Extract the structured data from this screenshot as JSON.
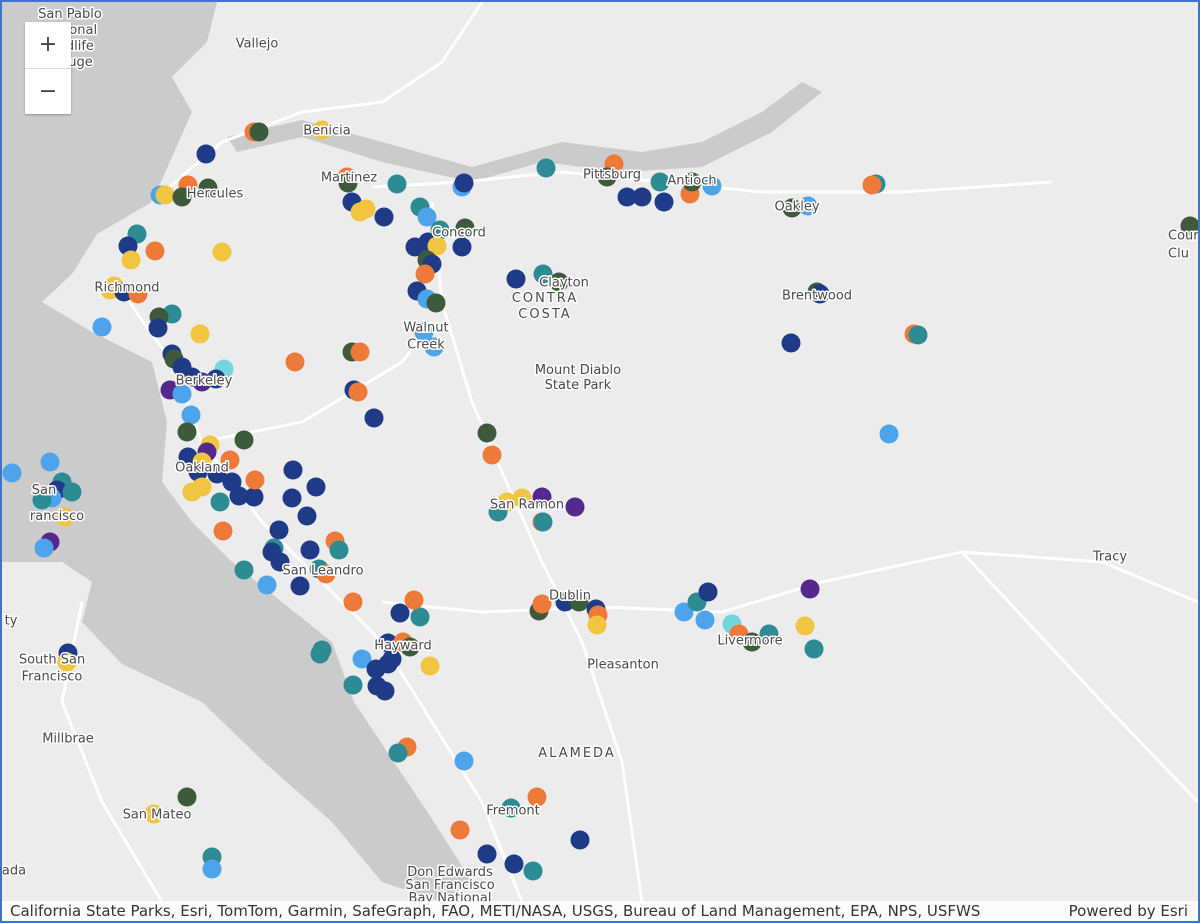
{
  "zoom": {
    "in": "+",
    "out": "−"
  },
  "labels": [
    [
      "San Pablo",
      "National",
      "Wildlife",
      "Refuge"
    ],
    [
      "Vallejo"
    ],
    [
      "Benicia"
    ],
    [
      "Martinez"
    ],
    [
      "Hercules"
    ],
    [
      "Pittsburg"
    ],
    [
      "Antioch"
    ],
    [
      "Oakley"
    ],
    [
      "Concord"
    ],
    [
      "Clayton"
    ],
    [
      "CONTRA",
      "COSTA"
    ],
    [
      "Richmond"
    ],
    [
      "Walnut",
      "Creek"
    ],
    [
      "Mount Diablo",
      "State Park"
    ],
    [
      "Brentwood"
    ],
    [
      "Berkeley"
    ],
    [
      "Oakland"
    ],
    [
      "San",
      "rancisco"
    ],
    [
      "San Ramon"
    ],
    [
      "San Leandro"
    ],
    [
      "Tracy"
    ],
    [
      "Dublin"
    ],
    [
      "Hayward"
    ],
    [
      "Livermore"
    ],
    [
      "Pleasanton"
    ],
    [
      "ty"
    ],
    [
      "South San",
      "Francisco"
    ],
    [
      "Millbrae"
    ],
    [
      "ALAMEDA"
    ],
    [
      "Fremont"
    ],
    [
      "San Mateo"
    ],
    [
      "Don Edwards",
      "San Francisco",
      "Bay National"
    ],
    [
      "ada"
    ],
    [
      "Cour",
      "Clu"
    ]
  ],
  "attribution": "California State Parks, Esri, TomTom, Garmin, SafeGraph, FAO, METI/NASA, USGS, Bureau of Land Management, EPA, NPS, USFWS",
  "powered_by": "Powered by Esri"
}
